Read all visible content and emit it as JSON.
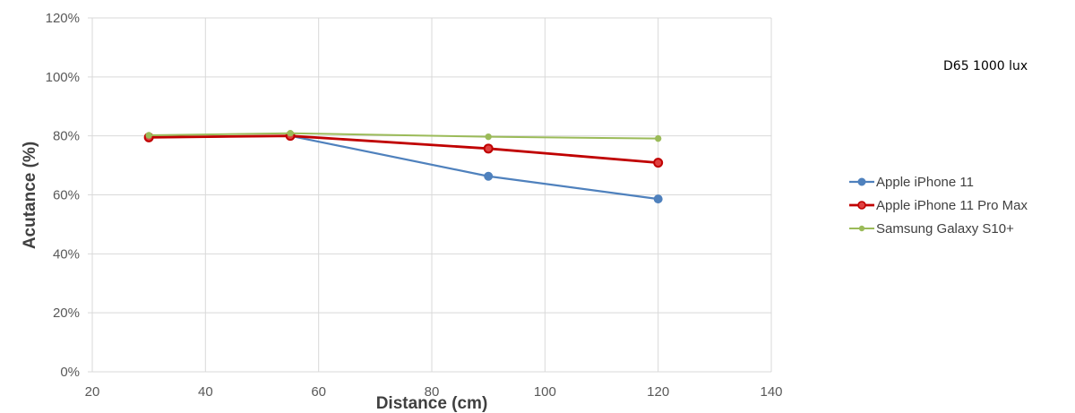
{
  "chart_data": {
    "type": "line",
    "title": "",
    "annotation": "D65 1000 lux",
    "xlabel": "Distance (cm)",
    "ylabel": "Acutance (%)",
    "xlim": [
      20,
      140
    ],
    "ylim": [
      0,
      120
    ],
    "x_ticks": [
      "20",
      "40",
      "60",
      "80",
      "100",
      "120",
      "140"
    ],
    "y_ticks": [
      "0%",
      "20%",
      "40%",
      "60%",
      "80%",
      "100%",
      "120%"
    ],
    "grid": true,
    "legend_position": "right",
    "x": [
      30,
      55,
      90,
      120
    ],
    "series": [
      {
        "name": "Apple iPhone 11",
        "color": "#4f81bd",
        "values": [
          79.5,
          80.0,
          66.3,
          58.6
        ]
      },
      {
        "name": "Apple iPhone 11 Pro Max",
        "color": "#c00000",
        "values": [
          79.5,
          80.0,
          75.7,
          70.9
        ]
      },
      {
        "name": "Samsung Galaxy S10+",
        "color": "#9bbb59",
        "values": [
          80.2,
          80.9,
          79.7,
          79.1
        ]
      }
    ]
  }
}
